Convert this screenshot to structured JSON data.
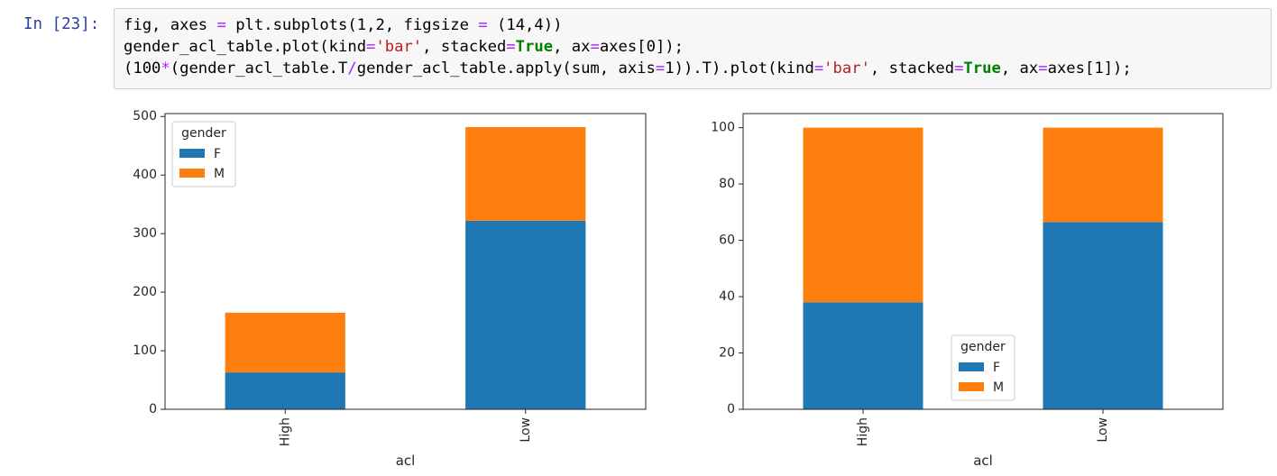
{
  "cell": {
    "prompt": "In [23]:",
    "lines": [
      [
        {
          "t": "fig, axes ",
          "c": ""
        },
        {
          "t": "=",
          "c": "op"
        },
        {
          "t": " plt.subplots(",
          "c": ""
        },
        {
          "t": "1",
          "c": "num"
        },
        {
          "t": ",",
          "c": ""
        },
        {
          "t": "2",
          "c": "num"
        },
        {
          "t": ", figsize ",
          "c": ""
        },
        {
          "t": "=",
          "c": "op"
        },
        {
          "t": " (",
          "c": ""
        },
        {
          "t": "14",
          "c": "num"
        },
        {
          "t": ",",
          "c": ""
        },
        {
          "t": "4",
          "c": "num"
        },
        {
          "t": "))",
          "c": ""
        }
      ],
      [
        {
          "t": "gender_acl_table.plot(kind",
          "c": ""
        },
        {
          "t": "=",
          "c": "op"
        },
        {
          "t": "'bar'",
          "c": "str"
        },
        {
          "t": ", stacked",
          "c": ""
        },
        {
          "t": "=",
          "c": "op"
        },
        {
          "t": "True",
          "c": "kw"
        },
        {
          "t": ", ax",
          "c": ""
        },
        {
          "t": "=",
          "c": "op"
        },
        {
          "t": "axes[",
          "c": ""
        },
        {
          "t": "0",
          "c": "num"
        },
        {
          "t": "]);",
          "c": ""
        }
      ],
      [
        {
          "t": "(",
          "c": ""
        },
        {
          "t": "100",
          "c": "num"
        },
        {
          "t": "*",
          "c": "op"
        },
        {
          "t": "(gender_acl_table.T",
          "c": ""
        },
        {
          "t": "/",
          "c": "op"
        },
        {
          "t": "gender_acl_table.apply(sum, axis",
          "c": ""
        },
        {
          "t": "=",
          "c": "op"
        },
        {
          "t": "1",
          "c": "num"
        },
        {
          "t": ")).T).plot(kind",
          "c": ""
        },
        {
          "t": "=",
          "c": "op"
        },
        {
          "t": "'bar'",
          "c": "str"
        },
        {
          "t": ", stacked",
          "c": ""
        },
        {
          "t": "=",
          "c": "op"
        },
        {
          "t": "True",
          "c": "kw"
        },
        {
          "t": ", ax",
          "c": ""
        },
        {
          "t": "=",
          "c": "op"
        },
        {
          "t": "axes[",
          "c": ""
        },
        {
          "t": "1",
          "c": "num"
        },
        {
          "t": "]);",
          "c": ""
        }
      ]
    ]
  },
  "colors": {
    "F": "#1f77b4",
    "M": "#ff7f0e"
  },
  "chart_data": [
    {
      "type": "bar",
      "stacked": true,
      "categories": [
        "High",
        "Low"
      ],
      "series": [
        {
          "name": "F",
          "values": [
            63,
            322
          ]
        },
        {
          "name": "M",
          "values": [
            102,
            160
          ]
        }
      ],
      "title": "",
      "xlabel": "acl",
      "ylabel": "",
      "ylim": [
        0,
        505
      ],
      "yticks": [
        0,
        100,
        200,
        300,
        400,
        500
      ],
      "grid": false,
      "legend": {
        "title": "gender",
        "placement": "top-left"
      }
    },
    {
      "type": "bar",
      "stacked": true,
      "categories": [
        "High",
        "Low"
      ],
      "series": [
        {
          "name": "F",
          "values": [
            38,
            66.5
          ]
        },
        {
          "name": "M",
          "values": [
            62,
            33.5
          ]
        }
      ],
      "title": "",
      "xlabel": "acl",
      "ylabel": "",
      "ylim": [
        0,
        105
      ],
      "yticks": [
        0,
        20,
        40,
        60,
        80,
        100
      ],
      "grid": false,
      "legend": {
        "title": "gender",
        "placement": "bottom-center"
      }
    }
  ]
}
